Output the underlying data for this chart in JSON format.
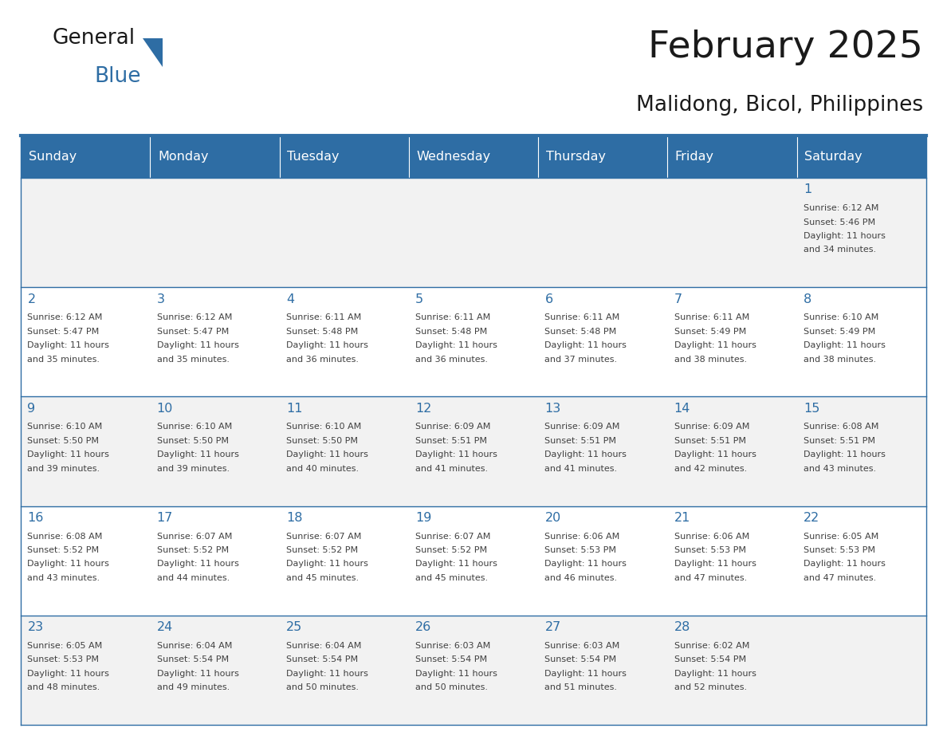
{
  "title": "February 2025",
  "subtitle": "Malidong, Bicol, Philippines",
  "days_of_week": [
    "Sunday",
    "Monday",
    "Tuesday",
    "Wednesday",
    "Thursday",
    "Friday",
    "Saturday"
  ],
  "header_bg": "#2E6DA4",
  "header_text": "#FFFFFF",
  "cell_bg_even": "#F2F2F2",
  "cell_bg_odd": "#FFFFFF",
  "cell_border": "#2E6DA4",
  "day_num_color": "#2E6DA4",
  "info_color": "#404040",
  "title_color": "#1a1a1a",
  "logo_general_color": "#1a1a1a",
  "logo_blue_color": "#2E6DA4",
  "days": [
    {
      "date": 1,
      "col": 6,
      "row": 0,
      "sunrise": "6:12 AM",
      "sunset": "5:46 PM",
      "daylight_p1": "11 hours",
      "daylight_p2": "and 34 minutes."
    },
    {
      "date": 2,
      "col": 0,
      "row": 1,
      "sunrise": "6:12 AM",
      "sunset": "5:47 PM",
      "daylight_p1": "11 hours",
      "daylight_p2": "and 35 minutes."
    },
    {
      "date": 3,
      "col": 1,
      "row": 1,
      "sunrise": "6:12 AM",
      "sunset": "5:47 PM",
      "daylight_p1": "11 hours",
      "daylight_p2": "and 35 minutes."
    },
    {
      "date": 4,
      "col": 2,
      "row": 1,
      "sunrise": "6:11 AM",
      "sunset": "5:48 PM",
      "daylight_p1": "11 hours",
      "daylight_p2": "and 36 minutes."
    },
    {
      "date": 5,
      "col": 3,
      "row": 1,
      "sunrise": "6:11 AM",
      "sunset": "5:48 PM",
      "daylight_p1": "11 hours",
      "daylight_p2": "and 36 minutes."
    },
    {
      "date": 6,
      "col": 4,
      "row": 1,
      "sunrise": "6:11 AM",
      "sunset": "5:48 PM",
      "daylight_p1": "11 hours",
      "daylight_p2": "and 37 minutes."
    },
    {
      "date": 7,
      "col": 5,
      "row": 1,
      "sunrise": "6:11 AM",
      "sunset": "5:49 PM",
      "daylight_p1": "11 hours",
      "daylight_p2": "and 38 minutes."
    },
    {
      "date": 8,
      "col": 6,
      "row": 1,
      "sunrise": "6:10 AM",
      "sunset": "5:49 PM",
      "daylight_p1": "11 hours",
      "daylight_p2": "and 38 minutes."
    },
    {
      "date": 9,
      "col": 0,
      "row": 2,
      "sunrise": "6:10 AM",
      "sunset": "5:50 PM",
      "daylight_p1": "11 hours",
      "daylight_p2": "and 39 minutes."
    },
    {
      "date": 10,
      "col": 1,
      "row": 2,
      "sunrise": "6:10 AM",
      "sunset": "5:50 PM",
      "daylight_p1": "11 hours",
      "daylight_p2": "and 39 minutes."
    },
    {
      "date": 11,
      "col": 2,
      "row": 2,
      "sunrise": "6:10 AM",
      "sunset": "5:50 PM",
      "daylight_p1": "11 hours",
      "daylight_p2": "and 40 minutes."
    },
    {
      "date": 12,
      "col": 3,
      "row": 2,
      "sunrise": "6:09 AM",
      "sunset": "5:51 PM",
      "daylight_p1": "11 hours",
      "daylight_p2": "and 41 minutes."
    },
    {
      "date": 13,
      "col": 4,
      "row": 2,
      "sunrise": "6:09 AM",
      "sunset": "5:51 PM",
      "daylight_p1": "11 hours",
      "daylight_p2": "and 41 minutes."
    },
    {
      "date": 14,
      "col": 5,
      "row": 2,
      "sunrise": "6:09 AM",
      "sunset": "5:51 PM",
      "daylight_p1": "11 hours",
      "daylight_p2": "and 42 minutes."
    },
    {
      "date": 15,
      "col": 6,
      "row": 2,
      "sunrise": "6:08 AM",
      "sunset": "5:51 PM",
      "daylight_p1": "11 hours",
      "daylight_p2": "and 43 minutes."
    },
    {
      "date": 16,
      "col": 0,
      "row": 3,
      "sunrise": "6:08 AM",
      "sunset": "5:52 PM",
      "daylight_p1": "11 hours",
      "daylight_p2": "and 43 minutes."
    },
    {
      "date": 17,
      "col": 1,
      "row": 3,
      "sunrise": "6:07 AM",
      "sunset": "5:52 PM",
      "daylight_p1": "11 hours",
      "daylight_p2": "and 44 minutes."
    },
    {
      "date": 18,
      "col": 2,
      "row": 3,
      "sunrise": "6:07 AM",
      "sunset": "5:52 PM",
      "daylight_p1": "11 hours",
      "daylight_p2": "and 45 minutes."
    },
    {
      "date": 19,
      "col": 3,
      "row": 3,
      "sunrise": "6:07 AM",
      "sunset": "5:52 PM",
      "daylight_p1": "11 hours",
      "daylight_p2": "and 45 minutes."
    },
    {
      "date": 20,
      "col": 4,
      "row": 3,
      "sunrise": "6:06 AM",
      "sunset": "5:53 PM",
      "daylight_p1": "11 hours",
      "daylight_p2": "and 46 minutes."
    },
    {
      "date": 21,
      "col": 5,
      "row": 3,
      "sunrise": "6:06 AM",
      "sunset": "5:53 PM",
      "daylight_p1": "11 hours",
      "daylight_p2": "and 47 minutes."
    },
    {
      "date": 22,
      "col": 6,
      "row": 3,
      "sunrise": "6:05 AM",
      "sunset": "5:53 PM",
      "daylight_p1": "11 hours",
      "daylight_p2": "and 47 minutes."
    },
    {
      "date": 23,
      "col": 0,
      "row": 4,
      "sunrise": "6:05 AM",
      "sunset": "5:53 PM",
      "daylight_p1": "11 hours",
      "daylight_p2": "and 48 minutes."
    },
    {
      "date": 24,
      "col": 1,
      "row": 4,
      "sunrise": "6:04 AM",
      "sunset": "5:54 PM",
      "daylight_p1": "11 hours",
      "daylight_p2": "and 49 minutes."
    },
    {
      "date": 25,
      "col": 2,
      "row": 4,
      "sunrise": "6:04 AM",
      "sunset": "5:54 PM",
      "daylight_p1": "11 hours",
      "daylight_p2": "and 50 minutes."
    },
    {
      "date": 26,
      "col": 3,
      "row": 4,
      "sunrise": "6:03 AM",
      "sunset": "5:54 PM",
      "daylight_p1": "11 hours",
      "daylight_p2": "and 50 minutes."
    },
    {
      "date": 27,
      "col": 4,
      "row": 4,
      "sunrise": "6:03 AM",
      "sunset": "5:54 PM",
      "daylight_p1": "11 hours",
      "daylight_p2": "and 51 minutes."
    },
    {
      "date": 28,
      "col": 5,
      "row": 4,
      "sunrise": "6:02 AM",
      "sunset": "5:54 PM",
      "daylight_p1": "11 hours",
      "daylight_p2": "and 52 minutes."
    }
  ]
}
